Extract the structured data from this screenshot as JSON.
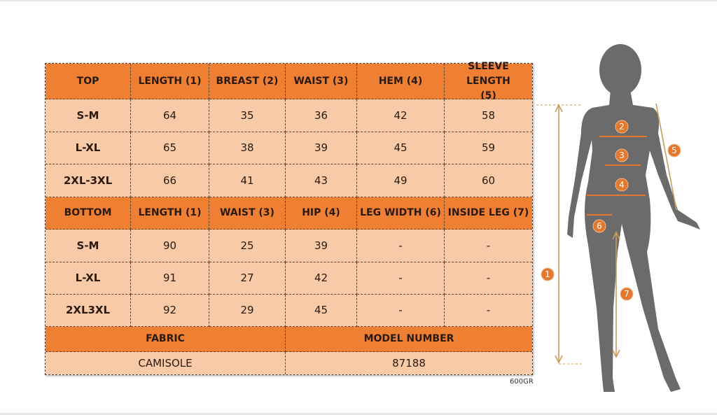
{
  "top_table": {
    "headers": [
      "TOP",
      "LENGTH (1)",
      "BREAST (2)",
      "WAIST (3)",
      "HEM (4)",
      "SLEEVE LENGTH (5)"
    ],
    "rows": [
      [
        "S-M",
        "64",
        "35",
        "36",
        "42",
        "58"
      ],
      [
        "L-XL",
        "65",
        "38",
        "39",
        "45",
        "59"
      ],
      [
        "2XL-3XL",
        "66",
        "41",
        "43",
        "49",
        "60"
      ]
    ]
  },
  "bottom_table": {
    "headers": [
      "BOTTOM",
      "LENGTH (1)",
      "WAIST (3)",
      "HIP (4)",
      "LEG WIDTH (6)",
      "INSIDE LEG (7)"
    ],
    "rows": [
      [
        "S-M",
        "90",
        "25",
        "39",
        "-",
        "-"
      ],
      [
        "L-XL",
        "91",
        "27",
        "42",
        "-",
        "-"
      ],
      [
        "2XL3XL",
        "92",
        "29",
        "45",
        "-",
        "-"
      ]
    ]
  },
  "info": {
    "fabric_label": "FABRIC",
    "model_label": "MODEL NUMBER",
    "fabric_value": "CAMISOLE",
    "model_value": "87188"
  },
  "weight_note": "600GR",
  "figure": {
    "markers": [
      "1",
      "2",
      "3",
      "4",
      "5",
      "6",
      "7"
    ]
  },
  "colors": {
    "header": "#ef7f32",
    "cell": "#f8caa8",
    "silhouette": "#6b6b6b",
    "marker": "#e3782f",
    "arrow": "#c99a5e"
  }
}
